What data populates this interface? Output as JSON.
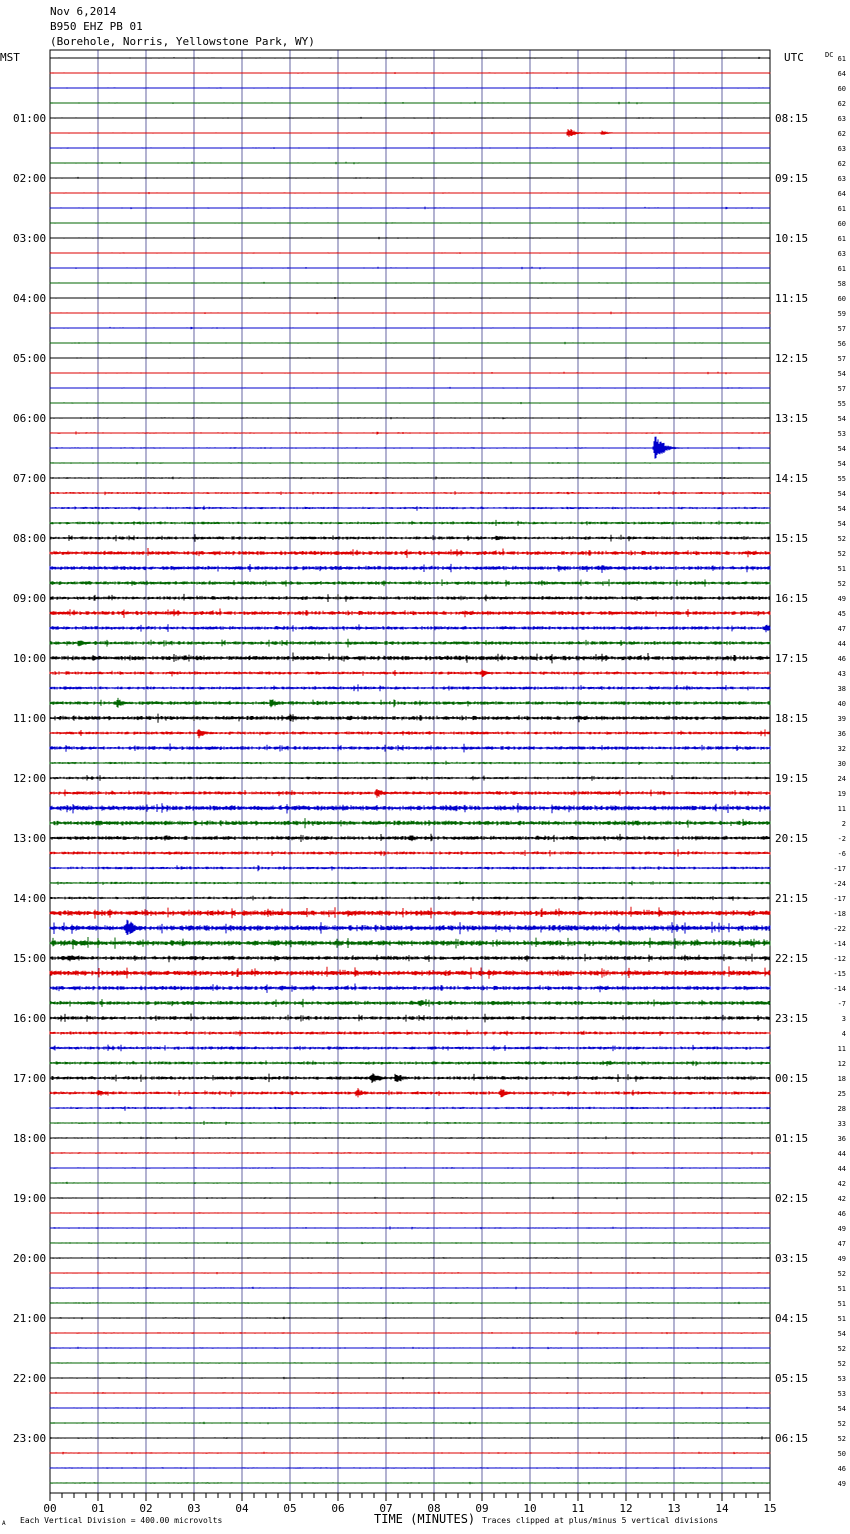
{
  "header": {
    "date": "Nov 6,2014",
    "station": "B950 EHZ PB 01",
    "location": "(Borehole, Norris, Yellowstone Park, WY)"
  },
  "left_axis_label": "MST",
  "right_axis_label": "UTC",
  "dc_label": "DC",
  "footer": {
    "scale_note": "Each Vertical Division =  400.00 microvolts",
    "corner_mark": "A",
    "clip_note": "Traces clipped at plus/minus 5 vertical divisions"
  },
  "colors": {
    "trace_cycle": [
      "#000000",
      "#dd0000",
      "#0000cc",
      "#006600"
    ],
    "grid": "#000066"
  },
  "chart_data": {
    "type": "line",
    "title": "",
    "xlabel": "TIME (MINUTES)",
    "xlim": [
      0,
      15
    ],
    "x_tick_labels": [
      "00",
      "01",
      "02",
      "03",
      "04",
      "05",
      "06",
      "07",
      "08",
      "09",
      "10",
      "11",
      "12",
      "13",
      "14",
      "15"
    ],
    "mst_hour_labels": [
      "01:00",
      "02:00",
      "03:00",
      "04:00",
      "05:00",
      "06:00",
      "07:00",
      "08:00",
      "09:00",
      "10:00",
      "11:00",
      "12:00",
      "13:00",
      "14:00",
      "15:00",
      "16:00",
      "17:00",
      "18:00",
      "19:00",
      "20:00",
      "21:00",
      "22:00",
      "23:00"
    ],
    "utc_hour_labels": [
      "08:15",
      "09:15",
      "10:15",
      "11:15",
      "12:15",
      "13:15",
      "14:15",
      "15:15",
      "16:15",
      "17:15",
      "18:15",
      "19:15",
      "20:15",
      "21:15",
      "22:15",
      "23:15",
      "00:15",
      "01:15",
      "02:15",
      "03:15",
      "04:15",
      "05:15",
      "06:15"
    ],
    "dc_offsets": [
      61,
      64,
      60,
      62,
      63,
      62,
      63,
      62,
      63,
      64,
      61,
      60,
      61,
      63,
      61,
      58,
      60,
      59,
      57,
      56,
      57,
      54,
      57,
      55,
      54,
      53,
      54,
      54,
      55,
      54,
      54,
      54,
      52,
      52,
      51,
      52,
      49,
      45,
      47,
      44,
      46,
      43,
      38,
      40,
      39,
      36,
      32,
      30,
      24,
      19,
      11,
      2,
      -2,
      -6,
      -17,
      -24,
      -17,
      -18,
      -22,
      -14,
      -12,
      -15,
      -14,
      -7,
      3,
      4,
      11,
      12,
      18,
      25,
      28,
      33,
      36,
      44,
      44,
      42,
      42,
      46,
      49,
      47,
      49,
      52,
      51,
      51,
      51,
      54,
      52,
      52,
      53,
      53,
      54,
      52,
      52,
      50,
      46,
      49
    ],
    "trace_activity": [
      0.5,
      0.5,
      0.5,
      0.5,
      0.5,
      0.5,
      0.5,
      0.5,
      0.5,
      0.5,
      0.5,
      0.5,
      0.5,
      0.5,
      0.5,
      0.5,
      0.5,
      0.5,
      0.5,
      0.5,
      0.5,
      0.5,
      0.5,
      0.5,
      0.6,
      0.6,
      0.6,
      0.6,
      0.7,
      0.9,
      1.0,
      1.2,
      1.4,
      1.8,
      1.8,
      1.6,
      1.6,
      1.8,
      1.6,
      1.6,
      2.0,
      1.4,
      1.4,
      1.6,
      1.8,
      1.4,
      1.6,
      1.0,
      1.2,
      1.6,
      2.2,
      2.0,
      1.8,
      1.4,
      1.2,
      1.0,
      1.2,
      2.4,
      2.4,
      2.4,
      1.8,
      2.4,
      1.8,
      1.8,
      1.6,
      1.4,
      1.4,
      1.4,
      1.6,
      1.4,
      1.0,
      0.8,
      0.7,
      0.7,
      0.6,
      0.6,
      0.6,
      0.6,
      0.6,
      0.6,
      0.6,
      0.6,
      0.6,
      0.6,
      0.6,
      0.6,
      0.6,
      0.6,
      0.6,
      0.6,
      0.6,
      0.6,
      0.6,
      0.6,
      0.6,
      0.6
    ],
    "events": [
      {
        "trace": 5,
        "minute": 10.8,
        "amplitude": 6
      },
      {
        "trace": 5,
        "minute": 11.5,
        "amplitude": 3
      },
      {
        "trace": 26,
        "minute": 12.6,
        "amplitude": 18
      },
      {
        "trace": 32,
        "minute": 9.3,
        "amplitude": 4
      },
      {
        "trace": 34,
        "minute": 10.6,
        "amplitude": 4
      },
      {
        "trace": 34,
        "minute": 11.5,
        "amplitude": 5
      },
      {
        "trace": 38,
        "minute": 14.9,
        "amplitude": 5
      },
      {
        "trace": 39,
        "minute": 0.6,
        "amplitude": 5
      },
      {
        "trace": 40,
        "minute": 0.9,
        "amplitude": 4
      },
      {
        "trace": 40,
        "minute": 2.8,
        "amplitude": 4
      },
      {
        "trace": 41,
        "minute": 9.0,
        "amplitude": 5
      },
      {
        "trace": 42,
        "minute": 12.5,
        "amplitude": 3
      },
      {
        "trace": 43,
        "minute": 1.4,
        "amplitude": 6
      },
      {
        "trace": 43,
        "minute": 4.6,
        "amplitude": 6
      },
      {
        "trace": 44,
        "minute": 5.0,
        "amplitude": 5
      },
      {
        "trace": 44,
        "minute": 6.2,
        "amplitude": 4
      },
      {
        "trace": 45,
        "minute": 3.1,
        "amplitude": 6
      },
      {
        "trace": 49,
        "minute": 6.8,
        "amplitude": 6
      },
      {
        "trace": 51,
        "minute": 1.0,
        "amplitude": 4
      },
      {
        "trace": 52,
        "minute": 2.4,
        "amplitude": 4
      },
      {
        "trace": 52,
        "minute": 7.5,
        "amplitude": 5
      },
      {
        "trace": 58,
        "minute": 1.6,
        "amplitude": 12
      },
      {
        "trace": 58,
        "minute": 2.9,
        "amplitude": 5
      },
      {
        "trace": 58,
        "minute": 10.8,
        "amplitude": 4
      },
      {
        "trace": 59,
        "minute": 14.6,
        "amplitude": 5
      },
      {
        "trace": 60,
        "minute": 0.4,
        "amplitude": 5
      },
      {
        "trace": 62,
        "minute": 4.8,
        "amplitude": 4
      },
      {
        "trace": 63,
        "minute": 7.7,
        "amplitude": 5
      },
      {
        "trace": 67,
        "minute": 11.6,
        "amplitude": 4
      },
      {
        "trace": 68,
        "minute": 6.7,
        "amplitude": 8
      },
      {
        "trace": 68,
        "minute": 7.2,
        "amplitude": 7
      },
      {
        "trace": 69,
        "minute": 6.4,
        "amplitude": 6
      },
      {
        "trace": 69,
        "minute": 9.4,
        "amplitude": 6
      },
      {
        "trace": 69,
        "minute": 1.0,
        "amplitude": 4
      }
    ]
  }
}
